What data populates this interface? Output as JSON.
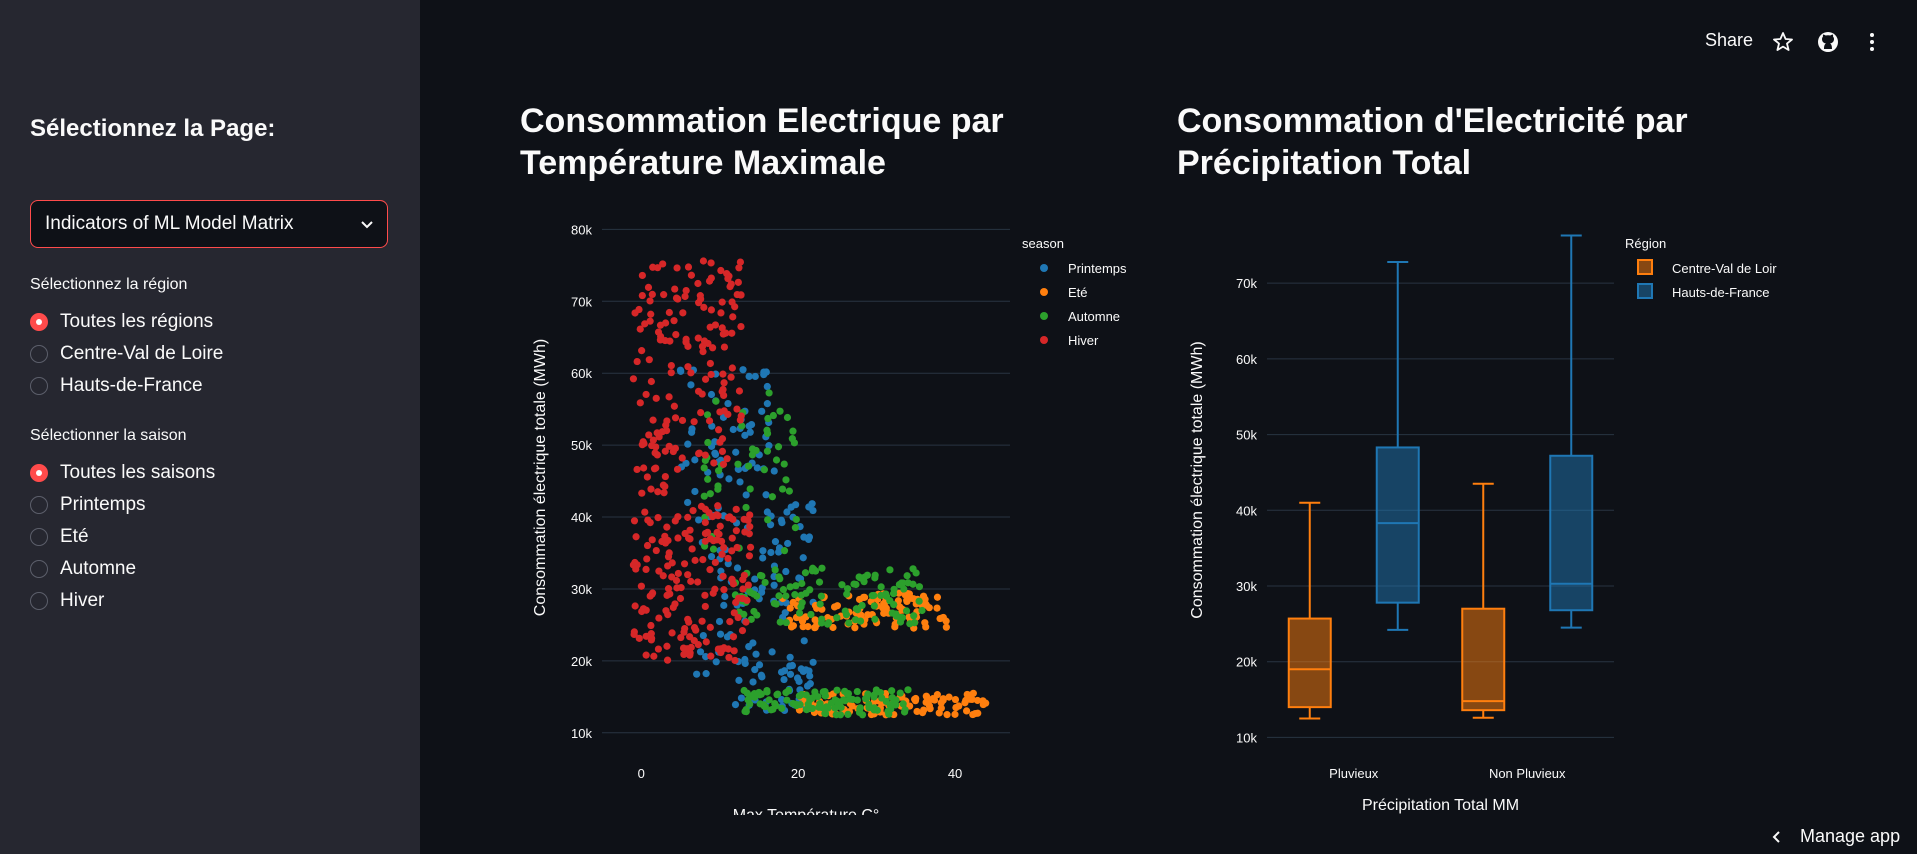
{
  "sidebar": {
    "title": "Sélectionnez la Page:",
    "page_select": "Indicators of ML Model Matrix",
    "region_label": "Sélectionnez la région",
    "regions": [
      "Toutes les régions",
      "Centre-Val de Loire",
      "Hauts-de-France"
    ],
    "region_selected": 0,
    "season_label": "Sélectionner la saison",
    "seasons": [
      "Toutes les saisons",
      "Printemps",
      "Eté",
      "Automne",
      "Hiver"
    ],
    "season_selected": 0
  },
  "toolbar": {
    "share": "Share",
    "icons": [
      "star-icon",
      "github-icon",
      "more-vert-icon"
    ]
  },
  "footer": {
    "manage_app": "Manage app"
  },
  "chart_data": [
    {
      "type": "scatter",
      "title": "Consommation Electrique par Température Maximale",
      "xlabel": "Max Température C°",
      "ylabel": "Consommation électrique totale (MWh)",
      "xlim": [
        -5,
        47
      ],
      "ylim": [
        9000,
        82000
      ],
      "xticks": [
        0,
        20,
        40
      ],
      "yticks": [
        10000,
        20000,
        30000,
        40000,
        50000,
        60000,
        70000,
        80000
      ],
      "ytick_labels": [
        "10k",
        "20k",
        "30k",
        "40k",
        "50k",
        "60k",
        "70k",
        "80k"
      ],
      "legend_title": "season",
      "legend_position": "top-right",
      "series": [
        {
          "name": "Printemps",
          "color": "#1f77b4",
          "clusters": [
            {
              "x": [
                5,
                17
              ],
              "y": [
                42000,
                62000
              ],
              "n": 60
            },
            {
              "x": [
                7,
                22
              ],
              "y": [
                18000,
                42000
              ],
              "n": 90
            },
            {
              "x": [
                12,
                22
              ],
              "y": [
                13000,
                20000
              ],
              "n": 40
            }
          ]
        },
        {
          "name": "Eté",
          "color": "#ff7f0e",
          "clusters": [
            {
              "x": [
                18,
                39
              ],
              "y": [
                24500,
                29500
              ],
              "n": 110
            },
            {
              "x": [
                20,
                44
              ],
              "y": [
                12500,
                15500
              ],
              "n": 110
            }
          ]
        },
        {
          "name": "Automne",
          "color": "#2ca02c",
          "clusters": [
            {
              "x": [
                8,
                20
              ],
              "y": [
                35000,
                58000
              ],
              "n": 50
            },
            {
              "x": [
                12,
                36
              ],
              "y": [
                25000,
                33000
              ],
              "n": 110
            },
            {
              "x": [
                13,
                34
              ],
              "y": [
                12500,
                16000
              ],
              "n": 110
            }
          ]
        },
        {
          "name": "Hiver",
          "color": "#d62728",
          "clusters": [
            {
              "x": [
                -1,
                13
              ],
              "y": [
                43000,
                76000
              ],
              "n": 160
            },
            {
              "x": [
                -1,
                14
              ],
              "y": [
                20000,
                42000
              ],
              "n": 170
            }
          ]
        }
      ]
    },
    {
      "type": "box",
      "title": "Consommation d'Electricité par Précipitation Total",
      "xlabel": "Précipitation Total MM",
      "ylabel": "Consommation électrique totale (MWh)",
      "ylim": [
        9000,
        79000
      ],
      "yticks": [
        10000,
        20000,
        30000,
        40000,
        50000,
        60000,
        70000
      ],
      "ytick_labels": [
        "10k",
        "20k",
        "30k",
        "40k",
        "50k",
        "60k",
        "70k"
      ],
      "categories": [
        "Pluvieux",
        "Non Pluvieux"
      ],
      "legend_title": "Région",
      "legend_position": "top-right",
      "series": [
        {
          "name": "Centre-Val de Loire",
          "color": "#ff7f0e",
          "boxes": [
            {
              "min": 12500,
              "q1": 14000,
              "median": 19000,
              "q3": 25700,
              "max": 41000
            },
            {
              "min": 12600,
              "q1": 13600,
              "median": 14800,
              "q3": 27000,
              "max": 43500
            }
          ]
        },
        {
          "name": "Hauts-de-France",
          "color": "#1f77b4",
          "boxes": [
            {
              "min": 24200,
              "q1": 27800,
              "median": 38300,
              "q3": 48300,
              "max": 72800
            },
            {
              "min": 24500,
              "q1": 26800,
              "median": 30300,
              "q3": 47200,
              "max": 76300
            }
          ]
        }
      ]
    }
  ]
}
